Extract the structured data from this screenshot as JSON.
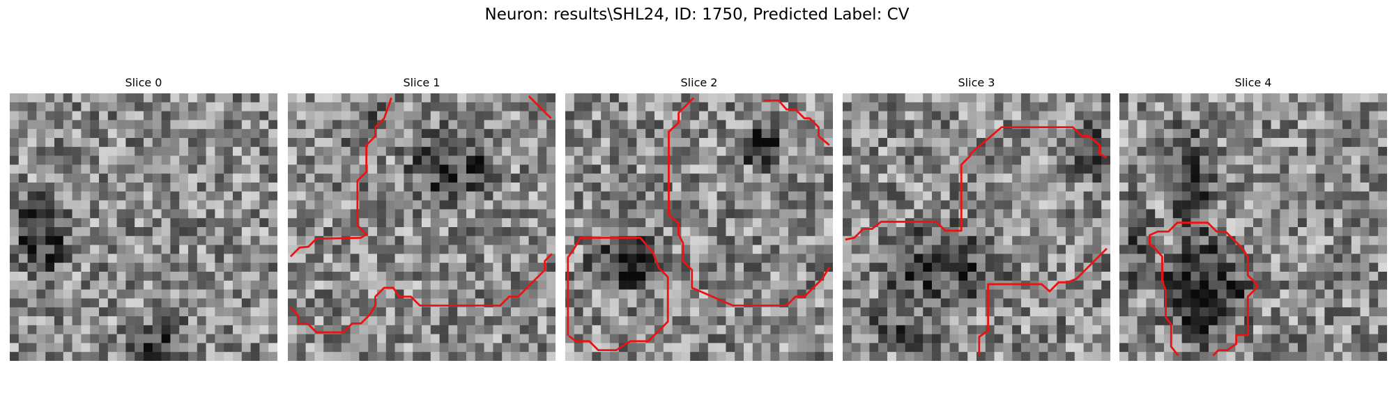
{
  "figure": {
    "title": "Neuron: results\\SHL24, ID: 1750, Predicted Label: CV"
  },
  "panels": [
    {
      "title": "Slice 0",
      "has_contour": false,
      "dark_regions": [
        [
          0.1,
          0.5,
          0.13,
          0.2,
          0.35
        ],
        [
          0.55,
          0.92,
          0.15,
          0.12,
          0.25
        ],
        [
          0.5,
          0.25,
          0.08,
          0.08,
          0.2
        ]
      ]
    },
    {
      "title": "Slice 1",
      "has_contour": true,
      "dark_regions": [
        [
          0.6,
          0.25,
          0.22,
          0.18,
          0.3
        ],
        [
          0.3,
          0.08,
          0.15,
          0.15,
          0.15
        ]
      ]
    },
    {
      "title": "Slice 2",
      "has_contour": true,
      "dark_regions": [
        [
          0.22,
          0.62,
          0.18,
          0.12,
          0.4
        ],
        [
          0.72,
          0.18,
          0.1,
          0.1,
          0.45
        ]
      ]
    },
    {
      "title": "Slice 3",
      "has_contour": true,
      "dark_regions": [
        [
          0.35,
          0.62,
          0.3,
          0.18,
          0.3
        ],
        [
          0.9,
          0.2,
          0.1,
          0.15,
          0.25
        ],
        [
          0.2,
          0.85,
          0.2,
          0.12,
          0.2
        ]
      ]
    },
    {
      "title": "Slice 4",
      "has_contour": true,
      "dark_regions": [
        [
          0.3,
          0.72,
          0.2,
          0.25,
          0.4
        ],
        [
          0.25,
          0.3,
          0.12,
          0.25,
          0.3
        ],
        [
          0.05,
          0.5,
          0.06,
          0.3,
          0.2
        ]
      ]
    }
  ],
  "colors": {
    "contour": "#ee1111",
    "background": "#ffffff"
  }
}
